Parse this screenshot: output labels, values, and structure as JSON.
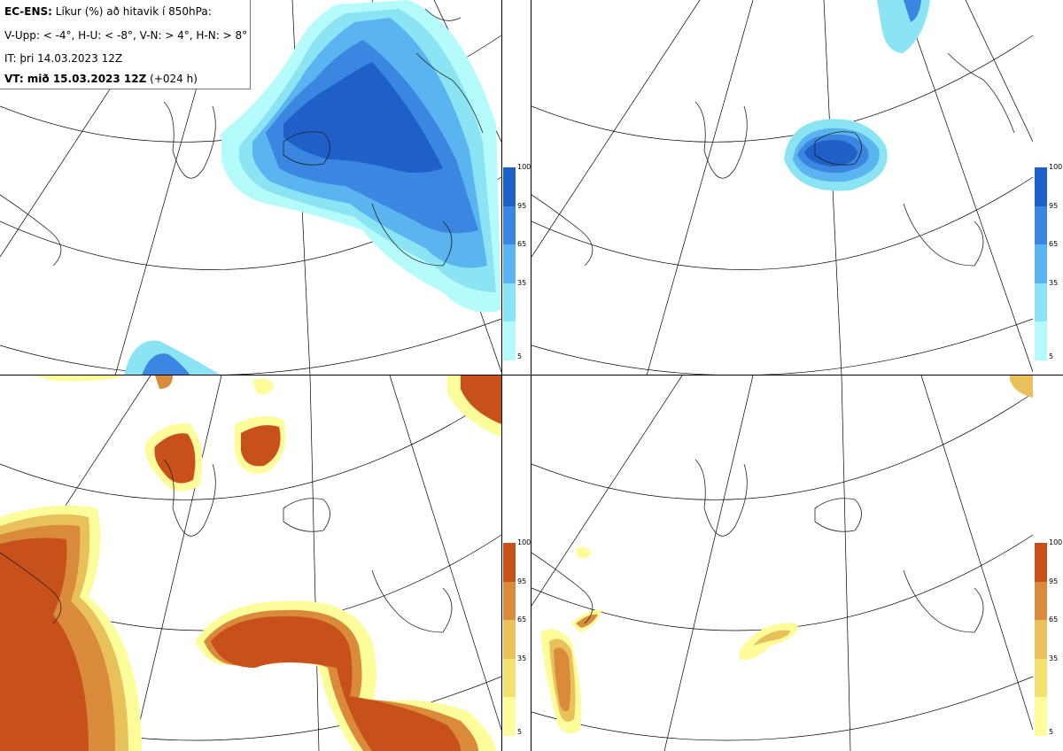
{
  "legend": {
    "line1_bold": "EC-ENS:",
    "line1_text": " Líkur (%) að hitavik í 850hPa:",
    "line2": "V-Upp: < -4°, H-U: < -8°, V-N: > 4°, H-N: > 8°",
    "line3": "IT: þri 14.03.2023 12Z",
    "line4_bold": "VT: mið 15.03.2023 12Z",
    "line4_text": " (+024 h)"
  },
  "colorbar": {
    "ticks": [
      "100",
      "95",
      "65",
      "35",
      "5"
    ],
    "blue_colors": [
      "#1e5fc8",
      "#3a86e0",
      "#5ab4ef",
      "#8be4f4",
      "#b6fbfb"
    ],
    "orange_colors": [
      "#c8501a",
      "#d98a3a",
      "#e8c15a",
      "#f4e270",
      "#fcfc9a"
    ]
  },
  "panels": [
    {
      "id": "top-left",
      "theme": "blue"
    },
    {
      "id": "top-right",
      "theme": "blue"
    },
    {
      "id": "bottom-left",
      "theme": "orange"
    },
    {
      "id": "bottom-right",
      "theme": "orange"
    }
  ]
}
